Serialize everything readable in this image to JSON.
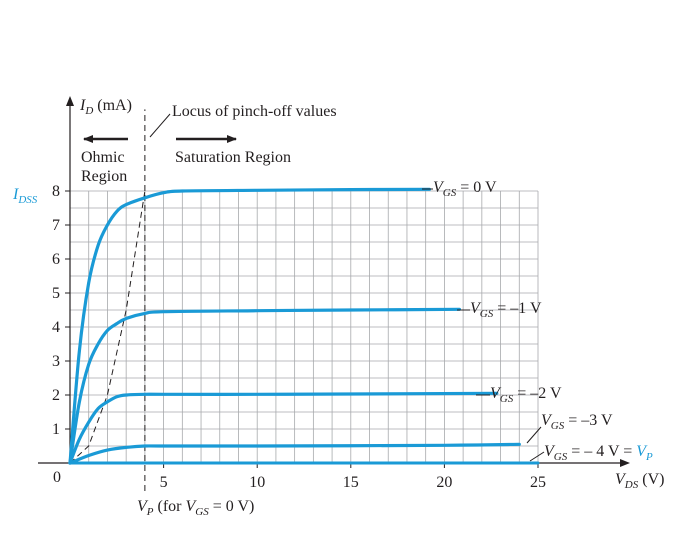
{
  "chart_data": {
    "type": "line",
    "xlabel_var": "V",
    "xlabel_sub": "DS",
    "xlabel_unit": "(V)",
    "ylabel_var": "I",
    "ylabel_sub": "D",
    "ylabel_unit": "(mA)",
    "idss_var": "I",
    "idss_sub": "DSS",
    "origin_label": "0",
    "xlim": [
      0,
      25
    ],
    "ylim": [
      0,
      8
    ],
    "x_ticks": [
      "5",
      "10",
      "15",
      "20",
      "25"
    ],
    "y_ticks": [
      "1",
      "2",
      "3",
      "4",
      "5",
      "6",
      "7",
      "8"
    ],
    "grid": true,
    "colors": {
      "curve": "#1a9ad6",
      "grid": "#a7a9ac",
      "axis": "#231f20"
    },
    "series": [
      {
        "name": "VGS = 0 V",
        "label_var": "V",
        "label_sub": "GS",
        "label_text": " = 0 V",
        "x": [
          0,
          0.5,
          1,
          1.5,
          2,
          2.5,
          3,
          4,
          5,
          6,
          10,
          15,
          19.2
        ],
        "y": [
          0,
          3.3,
          5.3,
          6.4,
          7.0,
          7.4,
          7.6,
          7.8,
          7.95,
          8.0,
          8.02,
          8.04,
          8.05
        ]
      },
      {
        "name": "VGS = -1 V",
        "label_var": "V",
        "label_sub": "GS",
        "label_text": " = –1 V",
        "x": [
          0,
          0.5,
          1,
          1.5,
          2,
          2.5,
          3,
          4,
          5,
          10,
          15,
          20.8
        ],
        "y": [
          0,
          1.8,
          2.9,
          3.5,
          3.9,
          4.1,
          4.25,
          4.4,
          4.45,
          4.48,
          4.5,
          4.52
        ]
      },
      {
        "name": "VGS = -2 V",
        "label_var": "V",
        "label_sub": "GS",
        "label_text": " = –2 V",
        "x": [
          0,
          0.5,
          1,
          1.5,
          2,
          2.5,
          3,
          4,
          5,
          10,
          15,
          22.8
        ],
        "y": [
          0,
          0.7,
          1.2,
          1.6,
          1.8,
          1.95,
          2.0,
          2.02,
          2.02,
          2.02,
          2.03,
          2.05
        ]
      },
      {
        "name": "VGS = -3 V",
        "label_var": "V",
        "label_sub": "GS",
        "label_text": " = –3 V",
        "x": [
          0,
          1,
          2,
          3,
          4,
          5,
          10,
          20,
          24
        ],
        "y": [
          0,
          0.22,
          0.38,
          0.46,
          0.5,
          0.5,
          0.5,
          0.52,
          0.55
        ]
      },
      {
        "name": "VGS = -4 V = VP",
        "label_var": "V",
        "label_sub": "GS",
        "label_text": " = – 4 V = ",
        "label_vp_var": "V",
        "label_vp_sub": "P",
        "x": [
          0,
          25
        ],
        "y": [
          0,
          0
        ]
      }
    ],
    "pinchoff_locus": {
      "x": [
        0,
        1,
        2,
        3,
        4
      ],
      "y": [
        0,
        0.5,
        2.0,
        4.5,
        8.0
      ]
    },
    "vp_x": 4,
    "annotations": {
      "locus": "Locus of pinch-off values",
      "ohmic_line1": "Ohmic",
      "ohmic_line2": "Region",
      "saturation": "Saturation Region",
      "vp_var": "V",
      "vp_sub": "P",
      "vp_paren_open": "(for ",
      "vp_cond_var": "V",
      "vp_cond_sub": "GS",
      "vp_cond_text": " = 0 V)"
    }
  }
}
